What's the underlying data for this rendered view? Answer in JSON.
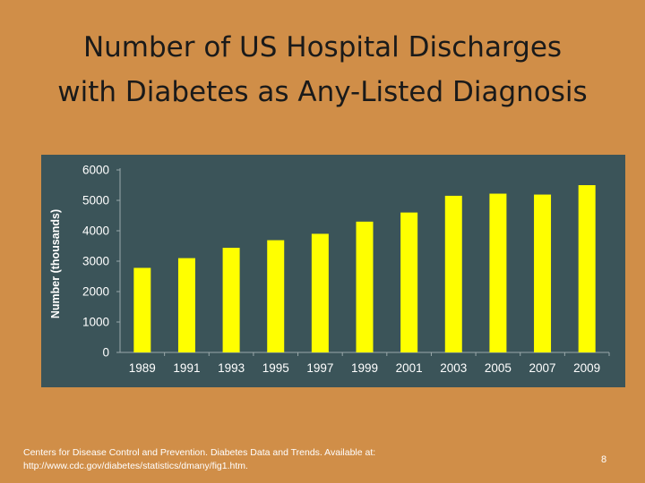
{
  "slide": {
    "title_line1": "Number of US Hospital Discharges",
    "title_line2": "with Diabetes as Any-Listed Diagnosis",
    "source_line1": "Centers for Disease Control and Prevention. Diabetes Data and Trends. Available at:",
    "source_line2": "http://www.cdc.gov/diabetes/statistics/dmany/fig1.htm.",
    "page_number": "8"
  },
  "colors": {
    "background": "#d08e48",
    "panel": "#3b5459",
    "bar": "#ffff00",
    "text": "#ffffff"
  },
  "chart_data": {
    "type": "bar",
    "categories": [
      "1989",
      "1991",
      "1993",
      "1995",
      "1997",
      "1999",
      "2001",
      "2003",
      "2005",
      "2007",
      "2009"
    ],
    "values": [
      2780,
      3100,
      3440,
      3690,
      3900,
      4300,
      4600,
      5150,
      5220,
      5190,
      5500
    ],
    "title": "",
    "xlabel": "",
    "ylabel": "Number (thousands)",
    "ylim": [
      0,
      6000
    ],
    "yticks": [
      0,
      1000,
      2000,
      3000,
      4000,
      5000,
      6000
    ],
    "grid": false,
    "legend": "none"
  }
}
